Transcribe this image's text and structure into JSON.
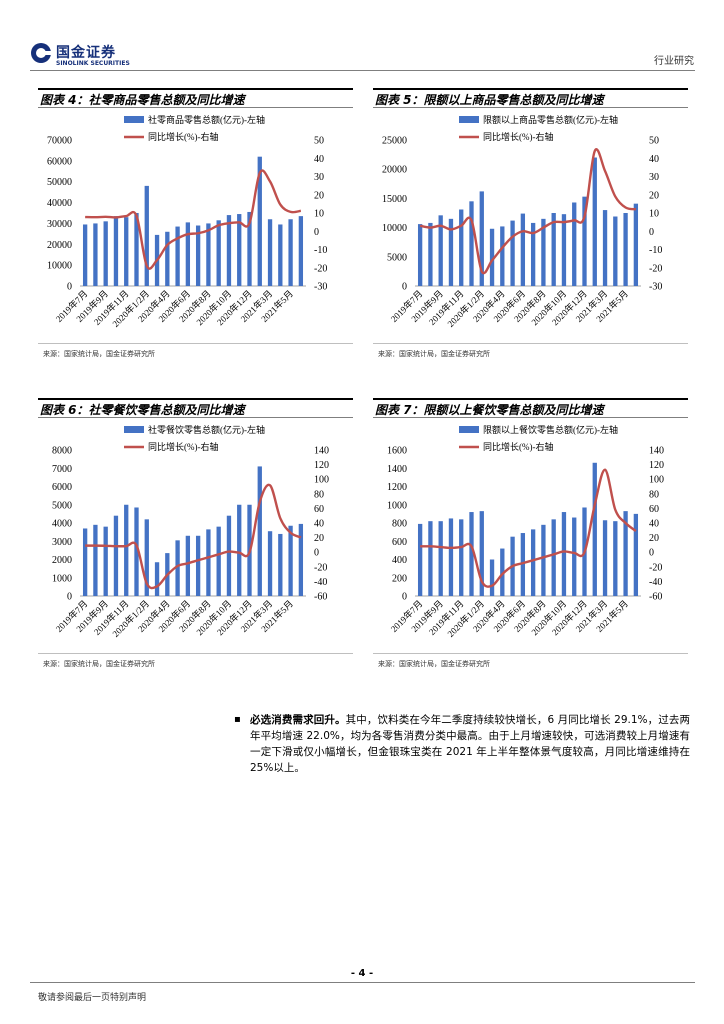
{
  "header": {
    "logo_cn": "国金证券",
    "logo_en": "SINOLINK SECURITIES",
    "category": "行业研究"
  },
  "figures": [
    {
      "title": "图表 4：社零商品零售总额及同比增速",
      "source": "来源：国家统计局，国金证券研究所"
    },
    {
      "title": "图表 5：限额以上商品零售总额及同比增速",
      "source": "来源：国家统计局，国金证券研究所"
    },
    {
      "title": "图表 6：社零餐饮零售总额及同比增速",
      "source": "来源：国家统计局，国金证券研究所"
    },
    {
      "title": "图表 7：限额以上餐饮零售总额及同比增速",
      "source": "来源：国家统计局，国金证券研究所"
    }
  ],
  "chart_data": [
    {
      "type": "bar",
      "categories": [
        "2019年7月",
        "2019年8月",
        "2019年9月",
        "2019年10月",
        "2019年11月",
        "2019年12月",
        "2020年1/2月",
        "2020年3月",
        "2020年4月",
        "2020年5月",
        "2020年6月",
        "2020年7月",
        "2020年8月",
        "2020年9月",
        "2020年10月",
        "2020年11月",
        "2020年12月",
        "2021年1/2月",
        "2021年3月",
        "2021年4月",
        "2021年5月",
        "2021年6月"
      ],
      "tick_labels": [
        "2019年7月",
        "2019年9月",
        "2019年11月",
        "2020年1/2月",
        "2020年4月",
        "2020年6月",
        "2020年8月",
        "2020年10月",
        "2020年12月",
        "2021年3月",
        "2021年5月"
      ],
      "series": [
        {
          "name": "社零商品零售总额(亿元)-左轴",
          "kind": "bar",
          "axis": "left",
          "values": [
            29500,
            30000,
            31000,
            33500,
            33000,
            35000,
            48000,
            24500,
            26000,
            28500,
            30500,
            29000,
            30000,
            31500,
            34000,
            34500,
            35500,
            62000,
            32000,
            29500,
            32000,
            33500
          ]
        },
        {
          "name": "同比增长(%)-右轴",
          "kind": "line",
          "axis": "right",
          "values": [
            7.8,
            7.7,
            7.9,
            7.6,
            8.3,
            8.5,
            -19,
            -15.8,
            -7.5,
            -3.9,
            -1.6,
            -1.1,
            0.5,
            3.3,
            4.4,
            4.9,
            4.5,
            32,
            27.3,
            14.6,
            10.6,
            11.2
          ]
        }
      ],
      "ylim_left": [
        0,
        70000
      ],
      "yticks_left": [
        0,
        10000,
        20000,
        30000,
        40000,
        50000,
        60000,
        70000
      ],
      "ylim_right": [
        -30,
        50
      ],
      "yticks_right": [
        -30,
        -20,
        -10,
        0,
        10,
        20,
        30,
        40,
        50
      ]
    },
    {
      "type": "bar",
      "categories": [
        "2019年7月",
        "2019年8月",
        "2019年9月",
        "2019年10月",
        "2019年11月",
        "2019年12月",
        "2020年1/2月",
        "2020年3月",
        "2020年4月",
        "2020年5月",
        "2020年6月",
        "2020年7月",
        "2020年8月",
        "2020年9月",
        "2020年10月",
        "2020年11月",
        "2020年12月",
        "2021年1/2月",
        "2021年3月",
        "2021年4月",
        "2021年5月",
        "2021年6月"
      ],
      "tick_labels": [
        "2019年7月",
        "2019年9月",
        "2019年11月",
        "2020年1/2月",
        "2020年4月",
        "2020年6月",
        "2020年8月",
        "2020年10月",
        "2020年12月",
        "2021年3月",
        "2021年5月"
      ],
      "series": [
        {
          "name": "限额以上商品零售总额(亿元)-左轴",
          "kind": "bar",
          "axis": "left",
          "values": [
            10600,
            10800,
            12100,
            11500,
            13100,
            14500,
            16200,
            9800,
            10200,
            11200,
            12400,
            10800,
            11500,
            12500,
            12300,
            14300,
            15300,
            22000,
            13000,
            11900,
            12500,
            14100
          ]
        },
        {
          "name": "同比增长(%)-右轴",
          "kind": "line",
          "axis": "right",
          "values": [
            3,
            2,
            3,
            1,
            3,
            6,
            -22,
            -16,
            -9,
            -3,
            0,
            -1,
            2,
            5,
            5,
            6,
            8,
            44,
            33,
            19,
            13,
            12
          ]
        }
      ],
      "ylim_left": [
        0,
        25000
      ],
      "yticks_left": [
        0,
        5000,
        10000,
        15000,
        20000,
        25000
      ],
      "ylim_right": [
        -30,
        50
      ],
      "yticks_right": [
        -30,
        -20,
        -10,
        0,
        10,
        20,
        30,
        40,
        50
      ]
    },
    {
      "type": "bar",
      "categories": [
        "2019年7月",
        "2019年8月",
        "2019年9月",
        "2019年10月",
        "2019年11月",
        "2019年12月",
        "2020年1/2月",
        "2020年3月",
        "2020年4月",
        "2020年5月",
        "2020年6月",
        "2020年7月",
        "2020年8月",
        "2020年9月",
        "2020年10月",
        "2020年11月",
        "2020年12月",
        "2021年1/2月",
        "2021年3月",
        "2021年4月",
        "2021年5月",
        "2021年6月"
      ],
      "tick_labels": [
        "2019年7月",
        "2019年9月",
        "2019年11月",
        "2020年1/2月",
        "2020年4月",
        "2020年6月",
        "2020年8月",
        "2020年10月",
        "2020年12月",
        "2021年3月",
        "2021年5月"
      ],
      "series": [
        {
          "name": "社零餐饮零售总额(亿元)-左轴",
          "kind": "bar",
          "axis": "left",
          "values": [
            3700,
            3900,
            3800,
            4400,
            5000,
            4850,
            4200,
            1850,
            2350,
            3050,
            3300,
            3300,
            3650,
            3800,
            4400,
            5000,
            5000,
            7100,
            3550,
            3400,
            3850,
            3950
          ]
        },
        {
          "name": "同比增长(%)-右轴",
          "kind": "line",
          "axis": "right",
          "values": [
            9,
            9,
            8.8,
            8.2,
            8.3,
            9.5,
            -43,
            -46.8,
            -31.1,
            -18.9,
            -15.2,
            -11,
            -7,
            -2.9,
            0.8,
            -0.6,
            -0.1,
            68.9,
            91.6,
            46.4,
            26.6,
            20.2
          ]
        }
      ],
      "ylim_left": [
        0,
        8000
      ],
      "yticks_left": [
        0,
        1000,
        2000,
        3000,
        4000,
        5000,
        6000,
        7000,
        8000
      ],
      "ylim_right": [
        -60,
        140
      ],
      "yticks_right": [
        -60,
        -40,
        -20,
        0,
        20,
        40,
        60,
        80,
        100,
        120,
        140
      ]
    },
    {
      "type": "bar",
      "categories": [
        "2019年7月",
        "2019年8月",
        "2019年9月",
        "2019年10月",
        "2019年11月",
        "2019年12月",
        "2020年1/2月",
        "2020年3月",
        "2020年4月",
        "2020年5月",
        "2020年6月",
        "2020年7月",
        "2020年8月",
        "2020年9月",
        "2020年10月",
        "2020年11月",
        "2020年12月",
        "2021年1/2月",
        "2021年3月",
        "2021年4月",
        "2021年5月",
        "2021年6月"
      ],
      "tick_labels": [
        "2019年7月",
        "2019年9月",
        "2019年11月",
        "2020年1/2月",
        "2020年4月",
        "2020年6月",
        "2020年8月",
        "2020年10月",
        "2020年12月",
        "2021年3月",
        "2021年5月"
      ],
      "series": [
        {
          "name": "限额以上餐饮零售总额(亿元)-左轴",
          "kind": "bar",
          "axis": "left",
          "values": [
            790,
            820,
            820,
            850,
            840,
            920,
            930,
            400,
            520,
            650,
            690,
            730,
            780,
            840,
            920,
            860,
            970,
            1460,
            830,
            820,
            930,
            900
          ]
        },
        {
          "name": "同比增长(%)-右轴",
          "kind": "line",
          "axis": "right",
          "values": [
            8,
            8,
            7,
            6,
            7,
            8,
            -40,
            -46,
            -30,
            -19,
            -15,
            -11,
            -7,
            -3,
            1,
            -1,
            0,
            65,
            113,
            58,
            40,
            29
          ]
        }
      ],
      "ylim_left": [
        0,
        1600
      ],
      "yticks_left": [
        0,
        200,
        400,
        600,
        800,
        1000,
        1200,
        1400,
        1600
      ],
      "ylim_right": [
        -60,
        140
      ],
      "yticks_right": [
        -60,
        -40,
        -20,
        0,
        20,
        40,
        60,
        80,
        100,
        120,
        140
      ]
    }
  ],
  "body": {
    "bullet": "▪",
    "lead": "必选消费需求回升。",
    "text": "其中，饮料类在今年二季度持续较快增长，6 月同比增长 29.1%，过去两年平均增速 22.0%，均为各零售消费分类中最高。由于上月增速较快，可选消费较上月增速有一定下滑或仅小幅增长，但金银珠宝类在 2021 年上半年整体景气度较高，月同比增速维持在 25%以上。"
  },
  "footer": {
    "page": "- 4 -",
    "note": "敬请参阅最后一页特别声明"
  },
  "colors": {
    "bar": "#4472c4",
    "line": "#c0504d",
    "brand": "#16307a"
  }
}
